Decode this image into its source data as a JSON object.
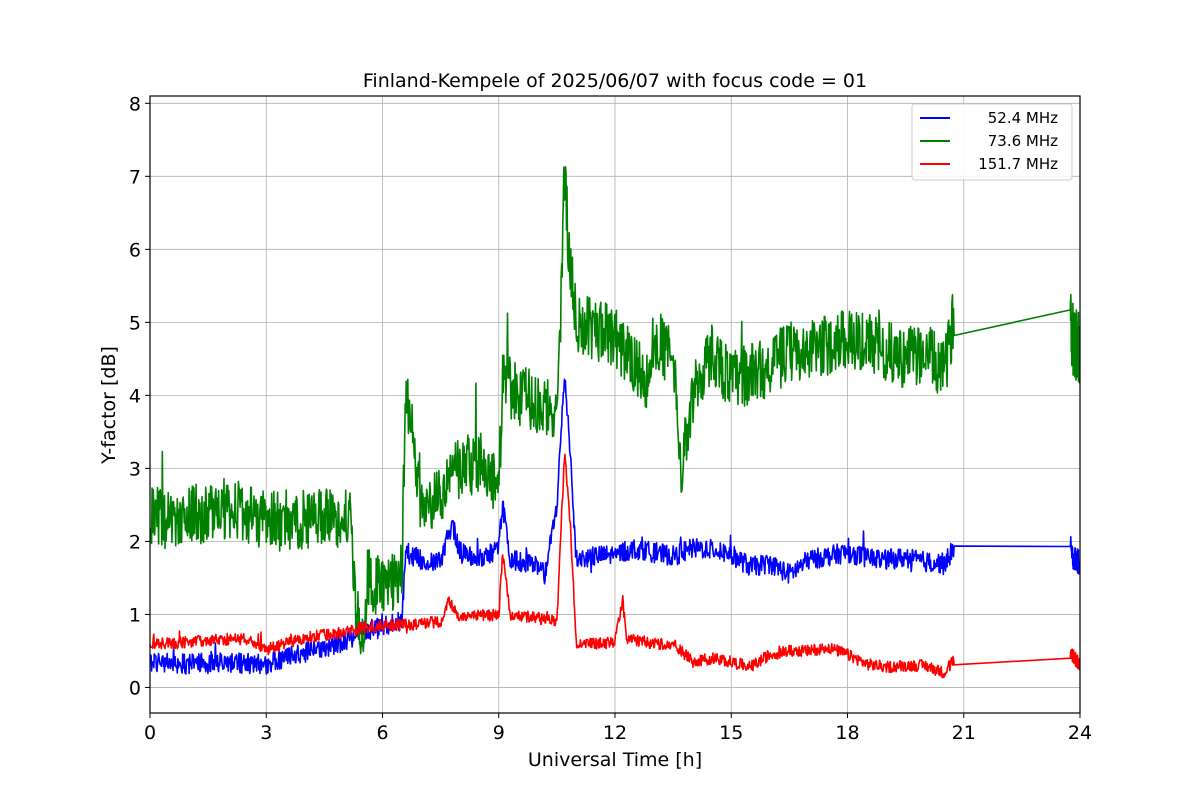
{
  "chart_data": {
    "type": "line",
    "title": "Finland-Kempele of 2025/06/07 with focus code = 01",
    "xlabel": "Universal Time [h]",
    "ylabel": "Y-factor [dB]",
    "xlim": [
      0,
      24
    ],
    "ylim": [
      -0.35,
      8.1
    ],
    "xticks": [
      0,
      3,
      6,
      9,
      12,
      15,
      18,
      21,
      24
    ],
    "yticks": [
      0,
      1,
      2,
      3,
      4,
      5,
      6,
      7,
      8
    ],
    "grid": true,
    "legend_position": "top-right",
    "series": [
      {
        "name": "52.4 MHz",
        "color": "#0000ff",
        "points": [
          [
            0.0,
            0.35
          ],
          [
            0.5,
            0.35
          ],
          [
            1.0,
            0.32
          ],
          [
            1.5,
            0.33
          ],
          [
            2.0,
            0.35
          ],
          [
            2.5,
            0.33
          ],
          [
            3.0,
            0.32
          ],
          [
            3.5,
            0.42
          ],
          [
            4.0,
            0.48
          ],
          [
            4.5,
            0.55
          ],
          [
            5.0,
            0.62
          ],
          [
            5.3,
            0.72
          ],
          [
            5.5,
            0.78
          ],
          [
            6.0,
            0.82
          ],
          [
            6.5,
            0.92
          ],
          [
            6.6,
            1.85
          ],
          [
            7.0,
            1.75
          ],
          [
            7.5,
            1.72
          ],
          [
            7.8,
            2.25
          ],
          [
            8.0,
            1.85
          ],
          [
            8.5,
            1.75
          ],
          [
            9.0,
            1.9
          ],
          [
            9.1,
            2.5
          ],
          [
            9.3,
            1.75
          ],
          [
            9.8,
            1.7
          ],
          [
            10.2,
            1.55
          ],
          [
            10.5,
            2.5
          ],
          [
            10.7,
            4.3
          ],
          [
            10.85,
            3.2
          ],
          [
            11.0,
            1.75
          ],
          [
            11.5,
            1.8
          ],
          [
            12.0,
            1.82
          ],
          [
            12.5,
            1.9
          ],
          [
            13.0,
            1.85
          ],
          [
            13.5,
            1.8
          ],
          [
            14.0,
            1.9
          ],
          [
            14.5,
            1.9
          ],
          [
            15.0,
            1.82
          ],
          [
            15.5,
            1.65
          ],
          [
            16.0,
            1.7
          ],
          [
            16.5,
            1.55
          ],
          [
            17.0,
            1.75
          ],
          [
            17.5,
            1.8
          ],
          [
            18.0,
            1.85
          ],
          [
            18.5,
            1.78
          ],
          [
            19.0,
            1.75
          ],
          [
            19.5,
            1.78
          ],
          [
            20.0,
            1.72
          ],
          [
            20.5,
            1.7
          ],
          [
            20.75,
            1.9
          ],
          [
            23.75,
            1.93
          ],
          [
            23.8,
            1.8
          ],
          [
            24.0,
            1.7
          ]
        ],
        "noise": 0.14
      },
      {
        "name": "73.6 MHz",
        "color": "#008000",
        "points": [
          [
            0.0,
            2.35
          ],
          [
            0.5,
            2.3
          ],
          [
            1.0,
            2.35
          ],
          [
            1.5,
            2.4
          ],
          [
            2.0,
            2.45
          ],
          [
            2.5,
            2.4
          ],
          [
            3.0,
            2.25
          ],
          [
            3.5,
            2.3
          ],
          [
            4.0,
            2.3
          ],
          [
            4.5,
            2.35
          ],
          [
            5.0,
            2.3
          ],
          [
            5.2,
            2.3
          ],
          [
            5.3,
            1.1
          ],
          [
            5.5,
            0.6
          ],
          [
            5.6,
            1.5
          ],
          [
            6.0,
            1.35
          ],
          [
            6.5,
            1.55
          ],
          [
            6.6,
            4.2
          ],
          [
            6.8,
            3.3
          ],
          [
            7.0,
            2.7
          ],
          [
            7.2,
            2.5
          ],
          [
            7.5,
            2.7
          ],
          [
            8.0,
            3.0
          ],
          [
            8.5,
            3.1
          ],
          [
            9.0,
            2.7
          ],
          [
            9.1,
            4.2
          ],
          [
            9.5,
            4.0
          ],
          [
            10.0,
            3.9
          ],
          [
            10.5,
            3.8
          ],
          [
            10.6,
            5.2
          ],
          [
            10.7,
            7.2
          ],
          [
            10.8,
            6.0
          ],
          [
            11.0,
            5.0
          ],
          [
            11.5,
            4.9
          ],
          [
            12.0,
            4.8
          ],
          [
            12.5,
            4.4
          ],
          [
            12.8,
            4.2
          ],
          [
            13.0,
            4.8
          ],
          [
            13.5,
            4.5
          ],
          [
            13.7,
            3.0
          ],
          [
            14.0,
            4.0
          ],
          [
            14.5,
            4.6
          ],
          [
            15.0,
            4.2
          ],
          [
            15.5,
            4.3
          ],
          [
            16.0,
            4.4
          ],
          [
            16.5,
            4.6
          ],
          [
            17.0,
            4.6
          ],
          [
            17.5,
            4.7
          ],
          [
            18.0,
            4.8
          ],
          [
            18.5,
            4.7
          ],
          [
            19.0,
            4.6
          ],
          [
            19.5,
            4.5
          ],
          [
            20.0,
            4.6
          ],
          [
            20.5,
            4.3
          ],
          [
            20.75,
            5.12
          ],
          [
            23.75,
            5.17
          ],
          [
            23.8,
            4.8
          ],
          [
            24.0,
            4.6
          ]
        ],
        "noise": 0.42
      },
      {
        "name": "151.7 MHz",
        "color": "#ff0000",
        "points": [
          [
            0.0,
            0.6
          ],
          [
            0.5,
            0.6
          ],
          [
            1.0,
            0.62
          ],
          [
            1.5,
            0.65
          ],
          [
            2.0,
            0.66
          ],
          [
            2.5,
            0.66
          ],
          [
            3.0,
            0.52
          ],
          [
            3.5,
            0.6
          ],
          [
            4.0,
            0.68
          ],
          [
            4.5,
            0.72
          ],
          [
            5.0,
            0.75
          ],
          [
            5.5,
            0.82
          ],
          [
            6.0,
            0.85
          ],
          [
            6.5,
            0.85
          ],
          [
            7.0,
            0.88
          ],
          [
            7.5,
            0.9
          ],
          [
            7.7,
            1.2
          ],
          [
            8.0,
            0.95
          ],
          [
            8.5,
            0.98
          ],
          [
            9.0,
            1.0
          ],
          [
            9.1,
            1.8
          ],
          [
            9.3,
            1.0
          ],
          [
            10.0,
            0.95
          ],
          [
            10.5,
            0.9
          ],
          [
            10.7,
            3.2
          ],
          [
            10.85,
            2.2
          ],
          [
            11.0,
            0.6
          ],
          [
            11.5,
            0.6
          ],
          [
            12.0,
            0.62
          ],
          [
            12.2,
            1.2
          ],
          [
            12.3,
            0.65
          ],
          [
            12.5,
            0.65
          ],
          [
            13.0,
            0.6
          ],
          [
            13.5,
            0.6
          ],
          [
            14.0,
            0.35
          ],
          [
            14.5,
            0.4
          ],
          [
            15.0,
            0.35
          ],
          [
            15.5,
            0.28
          ],
          [
            16.0,
            0.45
          ],
          [
            16.5,
            0.5
          ],
          [
            17.0,
            0.5
          ],
          [
            17.5,
            0.55
          ],
          [
            18.0,
            0.45
          ],
          [
            18.5,
            0.32
          ],
          [
            19.0,
            0.28
          ],
          [
            19.5,
            0.3
          ],
          [
            20.0,
            0.3
          ],
          [
            20.5,
            0.2
          ],
          [
            20.75,
            0.38
          ],
          [
            23.75,
            0.4
          ],
          [
            23.8,
            0.45
          ],
          [
            24.0,
            0.3
          ]
        ],
        "noise": 0.08
      }
    ]
  }
}
